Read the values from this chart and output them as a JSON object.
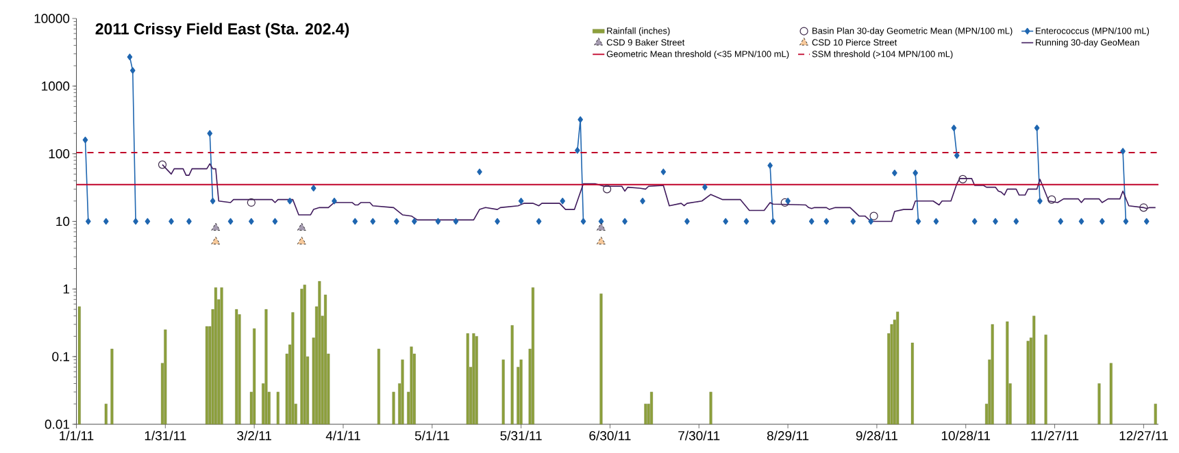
{
  "chart_data": {
    "type": "line",
    "title": "2011 Crissy Field East (Sta. 202.4)",
    "xlim": [
      "2011-01-01",
      "2012-01-01"
    ],
    "xticks": [
      {
        "value": "2011-01-01",
        "label": "1/1/11"
      },
      {
        "value": "2011-01-31",
        "label": "1/31/11"
      },
      {
        "value": "2011-03-02",
        "label": "3/2/11"
      },
      {
        "value": "2011-04-01",
        "label": "4/1/11"
      },
      {
        "value": "2011-05-01",
        "label": "5/1/11"
      },
      {
        "value": "2011-05-31",
        "label": "5/31/11"
      },
      {
        "value": "2011-06-30",
        "label": "6/30/11"
      },
      {
        "value": "2011-07-30",
        "label": "7/30/11"
      },
      {
        "value": "2011-08-29",
        "label": "8/29/11"
      },
      {
        "value": "2011-09-28",
        "label": "9/28/11"
      },
      {
        "value": "2011-10-28",
        "label": "10/28/11"
      },
      {
        "value": "2011-11-27",
        "label": "11/27/11"
      },
      {
        "value": "2011-12-27",
        "label": "12/27/11"
      }
    ],
    "ylim": [
      0.01,
      10000
    ],
    "yticks": [
      0.01,
      0.1,
      1,
      10,
      100,
      1000,
      10000
    ],
    "log": "y",
    "legend": "top right",
    "series": [
      {
        "name": "Rainfall (inches)",
        "type": "bar",
        "color": "#8da03c",
        "x": [
          "2011-01-02",
          "2011-01-11",
          "2011-01-13",
          "2011-01-30",
          "2011-01-31",
          "2011-02-14",
          "2011-02-15",
          "2011-02-16",
          "2011-02-17",
          "2011-02-18",
          "2011-02-19",
          "2011-02-24",
          "2011-02-25",
          "2011-03-01",
          "2011-03-02",
          "2011-03-05",
          "2011-03-06",
          "2011-03-07",
          "2011-03-10",
          "2011-03-13",
          "2011-03-14",
          "2011-03-15",
          "2011-03-16",
          "2011-03-18",
          "2011-03-19",
          "2011-03-20",
          "2011-03-22",
          "2011-03-23",
          "2011-03-24",
          "2011-03-25",
          "2011-03-26",
          "2011-03-27",
          "2011-04-13",
          "2011-04-18",
          "2011-04-20",
          "2011-04-21",
          "2011-04-23",
          "2011-04-24",
          "2011-04-25",
          "2011-05-13",
          "2011-05-14",
          "2011-05-15",
          "2011-05-16",
          "2011-05-25",
          "2011-05-28",
          "2011-05-30",
          "2011-05-31",
          "2011-06-03",
          "2011-06-04",
          "2011-06-27",
          "2011-07-12",
          "2011-07-13",
          "2011-07-14",
          "2011-08-03",
          "2011-10-02",
          "2011-10-03",
          "2011-10-04",
          "2011-10-05",
          "2011-10-10",
          "2011-11-04",
          "2011-11-05",
          "2011-11-06",
          "2011-11-11",
          "2011-11-12",
          "2011-11-18",
          "2011-11-19",
          "2011-11-20",
          "2011-11-24",
          "2011-12-12",
          "2011-12-16",
          "2011-12-31"
        ],
        "values": [
          0.55,
          0.02,
          0.13,
          0.08,
          0.25,
          0.28,
          0.28,
          0.5,
          1.05,
          0.7,
          1.05,
          0.5,
          0.42,
          0.03,
          0.26,
          0.04,
          0.5,
          0.03,
          0.03,
          0.11,
          0.15,
          0.45,
          0.02,
          1.0,
          1.15,
          0.1,
          0.19,
          0.55,
          1.3,
          0.4,
          0.82,
          0.11,
          0.13,
          0.03,
          0.04,
          0.09,
          0.03,
          0.14,
          0.11,
          0.22,
          0.07,
          0.22,
          0.2,
          0.09,
          0.29,
          0.07,
          0.09,
          0.13,
          1.05,
          0.85,
          0.02,
          0.02,
          0.03,
          0.03,
          0.22,
          0.3,
          0.35,
          0.46,
          0.16,
          0.02,
          0.09,
          0.3,
          0.33,
          0.04,
          0.17,
          0.19,
          0.4,
          0.21,
          0.04,
          0.08,
          0.02
        ]
      },
      {
        "name": "Basin Plan 30-day Geometric Mean (MPN/100 mL)",
        "type": "scatter",
        "marker": "circle",
        "color": "#3b2748",
        "x": [
          "2011-01-30",
          "2011-03-01",
          "2011-06-29",
          "2011-08-28",
          "2011-09-27",
          "2011-10-27",
          "2011-11-26",
          "2011-12-27"
        ],
        "values": [
          69,
          19,
          30,
          19,
          12,
          42,
          21,
          16
        ]
      },
      {
        "name": "Enterococcus (MPN/100 mL)",
        "marker": "diamond",
        "color": "#1f66b0",
        "x": [
          "2011-01-04",
          "2011-01-05",
          "2011-01-06",
          "2011-01-11",
          "2011-01-12",
          "2011-01-19",
          "2011-01-20",
          "2011-01-21",
          "2011-01-22",
          "2011-01-25",
          "2011-01-26",
          "2011-02-02",
          "2011-02-03",
          "2011-02-08",
          "2011-02-09",
          "2011-02-15",
          "2011-02-16",
          "2011-02-17",
          "2011-02-22",
          "2011-02-23",
          "2011-03-01",
          "2011-03-02",
          "2011-03-09",
          "2011-03-10",
          "2011-03-14",
          "2011-03-15",
          "2011-03-22",
          "2011-03-23",
          "2011-03-29",
          "2011-03-30",
          "2011-04-05",
          "2011-04-06",
          "2011-04-11",
          "2011-04-12",
          "2011-04-19",
          "2011-04-20",
          "2011-04-25",
          "2011-04-26",
          "2011-05-03",
          "2011-05-04",
          "2011-05-09",
          "2011-05-10",
          "2011-05-17",
          "2011-05-18",
          "2011-05-23",
          "2011-05-24",
          "2011-05-31",
          "2011-06-01",
          "2011-06-06",
          "2011-06-07",
          "2011-06-14",
          "2011-06-15",
          "2011-06-19",
          "2011-06-20",
          "2011-06-21",
          "2011-06-22",
          "2011-06-27",
          "2011-06-28",
          "2011-07-05",
          "2011-07-06",
          "2011-07-11",
          "2011-07-12",
          "2011-07-18",
          "2011-07-19",
          "2011-07-26",
          "2011-07-27",
          "2011-08-01",
          "2011-08-02",
          "2011-08-08",
          "2011-08-09",
          "2011-08-15",
          "2011-08-16",
          "2011-08-23",
          "2011-08-24",
          "2011-08-25",
          "2011-08-29",
          "2011-08-30",
          "2011-09-06",
          "2011-09-07",
          "2011-09-11",
          "2011-09-12",
          "2011-09-20",
          "2011-09-21",
          "2011-09-26",
          "2011-09-27",
          "2011-10-04",
          "2011-10-05",
          "2011-10-11",
          "2011-10-12",
          "2011-10-13",
          "2011-10-18",
          "2011-10-19",
          "2011-10-24",
          "2011-10-25",
          "2011-10-26",
          "2011-10-31",
          "2011-11-01",
          "2011-11-07",
          "2011-11-08",
          "2011-11-14",
          "2011-11-15",
          "2011-11-21",
          "2011-11-22",
          "2011-11-23",
          "2011-11-29",
          "2011-11-30",
          "2011-12-06",
          "2011-12-07",
          "2011-12-13",
          "2011-12-14",
          "2011-12-20",
          "2011-12-21",
          "2011-12-22",
          "2011-12-28"
        ],
        "values": [
          160,
          10,
          null,
          10,
          null,
          2700,
          1700,
          10,
          null,
          10,
          null,
          10,
          null,
          10,
          null,
          200,
          20,
          null,
          10,
          null,
          10,
          null,
          10,
          null,
          20,
          null,
          31,
          null,
          20,
          null,
          10,
          null,
          10,
          null,
          10,
          null,
          10,
          null,
          10,
          null,
          10,
          null,
          54,
          null,
          10,
          null,
          20,
          null,
          10,
          null,
          20,
          null,
          112,
          320,
          10,
          null,
          10,
          null,
          10,
          null,
          20,
          null,
          54,
          null,
          10,
          null,
          32,
          null,
          10,
          null,
          10,
          null,
          67,
          10,
          null,
          20,
          null,
          10,
          null,
          10,
          null,
          10,
          null,
          10,
          null,
          52,
          null,
          52,
          10,
          null,
          10,
          null,
          240,
          94,
          null,
          10,
          null,
          10,
          null,
          10,
          null,
          240,
          20,
          null,
          10,
          null,
          10,
          null,
          10,
          null,
          109,
          10,
          null,
          10
        ]
      },
      {
        "name": "CSD 9 Baker Street",
        "type": "scatter",
        "marker": "triangle",
        "color": "#a59bb0",
        "x": [
          "2011-02-17",
          "2011-03-18",
          "2011-06-27"
        ],
        "values": [
          8,
          8,
          8
        ]
      },
      {
        "name": "CSD 10 Pierce Street",
        "type": "scatter",
        "marker": "triangle",
        "color": "#f6c99b",
        "x": [
          "2011-02-17",
          "2011-03-18",
          "2011-06-27"
        ],
        "values": [
          5,
          5,
          5
        ]
      },
      {
        "name": "Running 30-day GeoMean",
        "color": "#3f1a5c",
        "x": [
          "2011-01-30",
          "2011-02-02",
          "2011-02-03",
          "2011-02-06",
          "2011-02-07",
          "2011-02-08",
          "2011-02-09",
          "2011-02-14",
          "2011-02-15",
          "2011-02-16",
          "2011-02-17",
          "2011-02-18",
          "2011-02-22",
          "2011-02-23",
          "2011-03-08",
          "2011-03-09",
          "2011-03-10",
          "2011-03-15",
          "2011-03-17",
          "2011-03-21",
          "2011-03-22",
          "2011-03-24",
          "2011-03-27",
          "2011-03-29",
          "2011-04-04",
          "2011-04-05",
          "2011-04-06",
          "2011-04-07",
          "2011-04-10",
          "2011-04-11",
          "2011-04-18",
          "2011-04-21",
          "2011-04-24",
          "2011-04-26",
          "2011-05-15",
          "2011-05-17",
          "2011-05-19",
          "2011-05-23",
          "2011-05-24",
          "2011-05-30",
          "2011-06-01",
          "2011-06-04",
          "2011-06-06",
          "2011-06-07",
          "2011-06-13",
          "2011-06-15",
          "2011-06-18",
          "2011-06-21",
          "2011-06-25",
          "2011-06-28",
          "2011-07-04",
          "2011-07-05",
          "2011-07-06",
          "2011-07-10",
          "2011-07-12",
          "2011-07-13",
          "2011-07-18",
          "2011-07-20",
          "2011-07-24",
          "2011-07-25",
          "2011-07-26",
          "2011-07-31",
          "2011-08-03",
          "2011-08-07",
          "2011-08-13",
          "2011-08-16",
          "2011-08-21",
          "2011-08-23",
          "2011-08-24",
          "2011-09-04",
          "2011-09-05",
          "2011-09-06",
          "2011-09-07",
          "2011-09-11",
          "2011-09-12",
          "2011-09-14",
          "2011-09-19",
          "2011-09-22",
          "2011-09-24",
          "2011-09-26",
          "2011-10-03",
          "2011-10-04",
          "2011-10-07",
          "2011-10-10",
          "2011-10-11",
          "2011-10-17",
          "2011-10-19",
          "2011-10-20",
          "2011-10-23",
          "2011-10-25",
          "2011-10-26",
          "2011-10-30",
          "2011-10-31",
          "2011-11-03",
          "2011-11-04",
          "2011-11-07",
          "2011-11-08",
          "2011-11-09",
          "2011-11-10",
          "2011-11-11",
          "2011-11-14",
          "2011-11-15",
          "2011-11-17",
          "2011-11-18",
          "2011-11-21",
          "2011-11-22",
          "2011-11-23",
          "2011-11-25",
          "2011-11-28",
          "2011-11-30",
          "2011-12-05",
          "2011-12-06",
          "2011-12-07",
          "2011-12-12",
          "2011-12-13",
          "2011-12-15",
          "2011-12-19",
          "2011-12-20",
          "2011-12-22",
          "2011-12-27",
          "2011-12-28",
          "2011-12-29",
          "2011-12-31"
        ],
        "values": [
          69,
          50,
          60,
          60,
          48,
          48,
          60,
          60,
          71,
          60,
          60,
          20,
          19,
          21,
          21,
          19,
          21,
          21,
          12.5,
          12.5,
          15,
          16,
          16,
          19,
          19,
          17.5,
          17.5,
          19,
          19,
          17,
          16,
          12.5,
          12,
          10.5,
          10.5,
          15,
          16,
          15,
          16,
          17,
          18.5,
          18.5,
          17,
          18.5,
          18.5,
          15,
          15,
          36,
          36,
          33,
          33,
          28,
          32,
          31,
          30,
          33,
          34,
          17,
          18.5,
          17,
          18.5,
          20,
          25,
          21,
          21,
          14.5,
          14.5,
          19,
          18,
          17.5,
          16,
          15.5,
          16,
          16,
          15,
          16,
          16,
          12,
          12,
          10,
          10,
          14,
          15,
          15,
          20,
          20,
          17.5,
          20,
          20,
          36,
          43,
          43,
          34,
          34,
          32,
          32,
          28,
          27,
          24.5,
          30,
          30,
          24.5,
          24.5,
          30,
          30,
          42,
          33,
          20,
          19,
          21.5,
          21.5,
          19,
          21.5,
          21.5,
          19,
          21.5,
          21.5,
          28,
          17,
          16,
          15.5,
          16,
          16
        ]
      }
    ],
    "ref_lines": [
      {
        "axis": "y",
        "value": 35,
        "label": "Geometric Mean threshold (<35 MPN/100 mL)",
        "color": "#c00028",
        "line_style": "solid"
      },
      {
        "axis": "y",
        "value": 104,
        "label": "SSM threshold (>104 MPN/100 mL)",
        "color": "#c00028",
        "line_style": "dashed"
      }
    ]
  }
}
